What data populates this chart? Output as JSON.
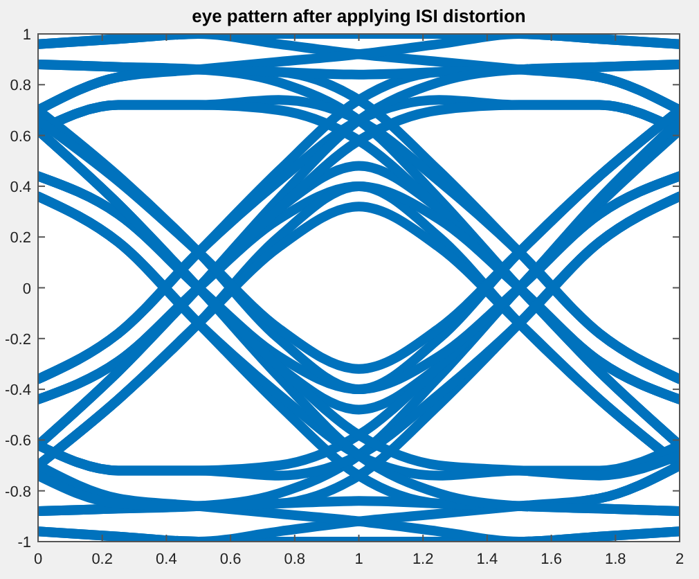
{
  "chart_data": {
    "type": "line",
    "title": "eye pattern after applying ISI distortion",
    "x": [
      0,
      0.25,
      0.5,
      0.75,
      1,
      1.25,
      1.5,
      1.75,
      2
    ],
    "xlim": [
      0,
      2
    ],
    "ylim": [
      -1,
      1
    ],
    "xticks": [
      0,
      0.2,
      0.4,
      0.6,
      0.8,
      1,
      1.2,
      1.4,
      1.6,
      1.8,
      2
    ],
    "yticks": [
      -1,
      -0.8,
      -0.6,
      -0.4,
      -0.2,
      0,
      0.2,
      0.4,
      0.6,
      0.8,
      1
    ],
    "series": [
      {
        "color": "#0072bd",
        "values": [
          0.96,
          0.98,
          1,
          1,
          1,
          1,
          1,
          0.98,
          0.96
        ]
      },
      {
        "color": "#0072bd",
        "values": [
          0.96,
          0.98,
          1,
          0.96,
          0.92,
          0.89,
          0.86,
          0.83,
          0.7
        ]
      },
      {
        "color": "#0072bd",
        "values": [
          0.88,
          0.87,
          0.86,
          0.85,
          0.74,
          0.46,
          0.14,
          -0.18,
          -0.36
        ]
      },
      {
        "color": "#0072bd",
        "values": [
          0.88,
          0.87,
          0.86,
          0.81,
          0.66,
          0.35,
          0,
          -0.33,
          -0.62
        ]
      },
      {
        "color": "#0072bd",
        "values": [
          -0.36,
          -0.18,
          0.14,
          0.46,
          0.74,
          0.85,
          0.86,
          0.87,
          0.88
        ]
      },
      {
        "color": "#0072bd",
        "values": [
          -0.36,
          -0.18,
          0.14,
          0.42,
          0.66,
          0.74,
          0.72,
          0.72,
          0.62
        ]
      },
      {
        "color": "#0072bd",
        "values": [
          -0.44,
          -0.29,
          0,
          0.31,
          0.48,
          0.31,
          0,
          -0.29,
          -0.44
        ]
      },
      {
        "color": "#0072bd",
        "values": [
          -0.44,
          -0.29,
          0,
          0.27,
          0.4,
          0.2,
          -0.14,
          -0.44,
          -0.7
        ]
      },
      {
        "color": "#0072bd",
        "values": [
          0.7,
          0.83,
          0.86,
          0.89,
          0.92,
          0.96,
          1,
          0.98,
          0.96
        ]
      },
      {
        "color": "#0072bd",
        "values": [
          0.7,
          0.83,
          0.86,
          0.85,
          0.84,
          0.85,
          0.86,
          0.83,
          0.7
        ]
      },
      {
        "color": "#0072bd",
        "values": [
          0.62,
          0.72,
          0.72,
          0.74,
          0.66,
          0.42,
          0.14,
          -0.18,
          -0.36
        ]
      },
      {
        "color": "#0072bd",
        "values": [
          0.62,
          0.72,
          0.72,
          0.7,
          0.58,
          0.31,
          0,
          -0.33,
          -0.62
        ]
      },
      {
        "color": "#0072bd",
        "values": [
          -0.62,
          -0.33,
          0,
          0.35,
          0.66,
          0.81,
          0.86,
          0.87,
          0.88
        ]
      },
      {
        "color": "#0072bd",
        "values": [
          -0.62,
          -0.33,
          0,
          0.31,
          0.58,
          0.7,
          0.72,
          0.72,
          0.62
        ]
      },
      {
        "color": "#0072bd",
        "values": [
          -0.7,
          -0.44,
          -0.14,
          0.2,
          0.4,
          0.27,
          0,
          -0.29,
          -0.44
        ]
      },
      {
        "color": "#0072bd",
        "values": [
          -0.7,
          -0.44,
          -0.14,
          0.16,
          0.32,
          0.16,
          -0.14,
          -0.44,
          -0.7
        ]
      },
      {
        "color": "#0072bd",
        "values": [
          -0.96,
          -0.98,
          -1,
          -1,
          -1,
          -1,
          -1,
          -0.98,
          -0.96
        ]
      },
      {
        "color": "#0072bd",
        "values": [
          -0.96,
          -0.98,
          -1,
          -0.96,
          -0.92,
          -0.89,
          -0.86,
          -0.83,
          -0.7
        ]
      },
      {
        "color": "#0072bd",
        "values": [
          -0.88,
          -0.87,
          -0.86,
          -0.85,
          -0.74,
          -0.46,
          -0.14,
          0.18,
          0.36
        ]
      },
      {
        "color": "#0072bd",
        "values": [
          -0.88,
          -0.87,
          -0.86,
          -0.81,
          -0.66,
          -0.35,
          0,
          0.33,
          0.62
        ]
      },
      {
        "color": "#0072bd",
        "values": [
          0.36,
          0.18,
          -0.14,
          -0.46,
          -0.74,
          -0.85,
          -0.86,
          -0.87,
          -0.88
        ]
      },
      {
        "color": "#0072bd",
        "values": [
          0.36,
          0.18,
          -0.14,
          -0.42,
          -0.66,
          -0.74,
          -0.72,
          -0.72,
          -0.62
        ]
      },
      {
        "color": "#0072bd",
        "values": [
          0.44,
          0.29,
          0,
          -0.31,
          -0.48,
          -0.31,
          0,
          0.29,
          0.44
        ]
      },
      {
        "color": "#0072bd",
        "values": [
          0.44,
          0.29,
          0,
          -0.27,
          -0.4,
          -0.2,
          0.14,
          0.44,
          0.7
        ]
      },
      {
        "color": "#0072bd",
        "values": [
          -0.7,
          -0.83,
          -0.86,
          -0.89,
          -0.92,
          -0.96,
          -1,
          -0.98,
          -0.96
        ]
      },
      {
        "color": "#0072bd",
        "values": [
          -0.74,
          -0.85,
          -0.86,
          -0.85,
          -0.84,
          -0.85,
          -0.86,
          -0.83,
          -0.7
        ]
      },
      {
        "color": "#0072bd",
        "values": [
          -0.62,
          -0.72,
          -0.72,
          -0.74,
          -0.66,
          -0.42,
          -0.14,
          0.18,
          0.36
        ]
      },
      {
        "color": "#0072bd",
        "values": [
          -0.62,
          -0.72,
          -0.72,
          -0.7,
          -0.58,
          -0.31,
          0,
          0.35,
          0.66
        ]
      },
      {
        "color": "#0072bd",
        "values": [
          0.62,
          0.33,
          0,
          -0.35,
          -0.66,
          -0.81,
          -0.86,
          -0.87,
          -0.88
        ]
      },
      {
        "color": "#0072bd",
        "values": [
          0.62,
          0.33,
          0,
          -0.31,
          -0.58,
          -0.7,
          -0.72,
          -0.74,
          -0.66
        ]
      },
      {
        "color": "#0072bd",
        "values": [
          0.7,
          0.44,
          0.14,
          -0.2,
          -0.4,
          -0.27,
          0,
          0.29,
          0.44
        ]
      },
      {
        "color": "#0072bd",
        "values": [
          0.66,
          0.42,
          0.14,
          -0.16,
          -0.32,
          -0.16,
          0.14,
          0.44,
          0.7
        ]
      }
    ]
  }
}
